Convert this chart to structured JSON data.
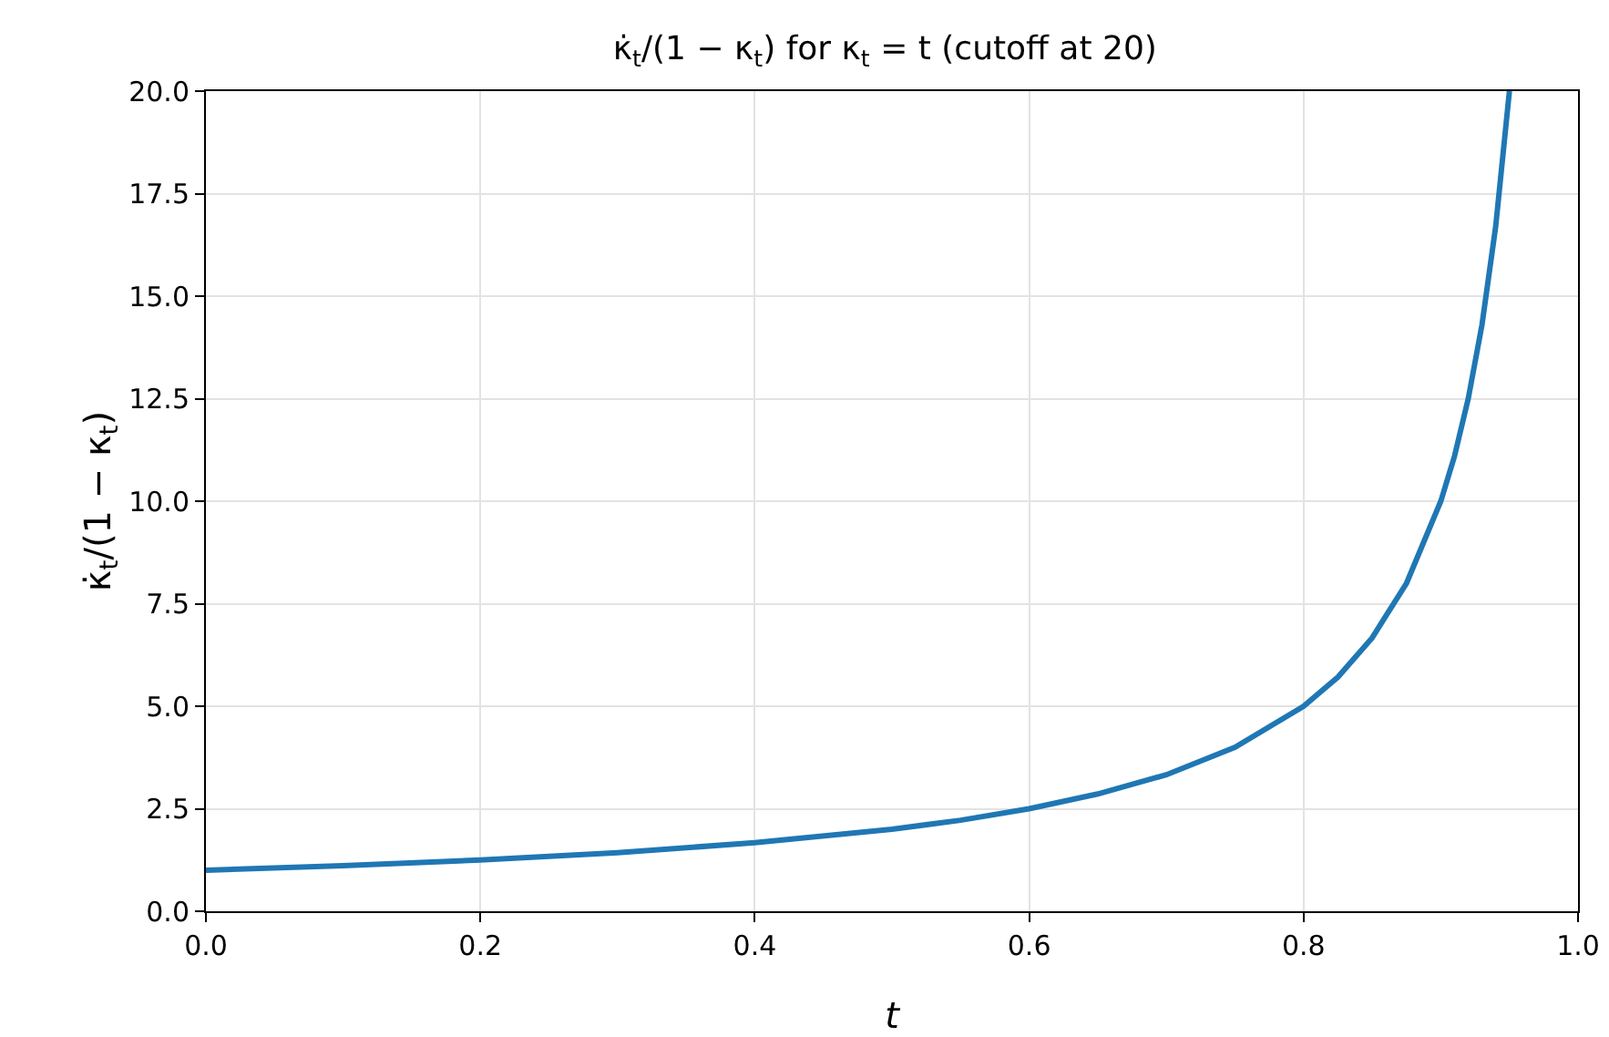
{
  "chart_data": {
    "type": "line",
    "title": "κ̇$_{t}$/(1 − κ$_{t}$) for κ$_{t}$ = t (cutoff at 20)",
    "xlabel": "t",
    "ylabel": "κ̇$_{t}$/(1 − κ$_{t}$)",
    "x": [
      0,
      0.1,
      0.2,
      0.3,
      0.4,
      0.5,
      0.55,
      0.6,
      0.65,
      0.7,
      0.75,
      0.8,
      0.825,
      0.85,
      0.875,
      0.9,
      0.91,
      0.92,
      0.93,
      0.94,
      0.95
    ],
    "series": [
      {
        "color": "#1f77b4",
        "values": [
          1,
          1.11,
          1.25,
          1.43,
          1.67,
          2,
          2.22,
          2.5,
          2.86,
          3.33,
          4,
          5,
          5.71,
          6.67,
          8,
          10,
          11.1,
          12.5,
          14.3,
          16.7,
          20
        ]
      }
    ],
    "xlim": [
      0,
      1
    ],
    "ylim": [
      0,
      20
    ],
    "xticks": [
      {
        "value": 0,
        "label": "0.0"
      },
      {
        "value": 0.2,
        "label": "0.2"
      },
      {
        "value": 0.4,
        "label": "0.4"
      },
      {
        "value": 0.6,
        "label": "0.6"
      },
      {
        "value": 0.8,
        "label": "0.8"
      },
      {
        "value": 1,
        "label": "1.0"
      }
    ],
    "yticks": [
      {
        "value": 0,
        "label": "0.0"
      },
      {
        "value": 2.5,
        "label": "2.5"
      },
      {
        "value": 5,
        "label": "5.0"
      },
      {
        "value": 7.5,
        "label": "7.5"
      },
      {
        "value": 10,
        "label": "10.0"
      },
      {
        "value": 12.5,
        "label": "12.5"
      },
      {
        "value": 15,
        "label": "15.0"
      },
      {
        "value": 17.5,
        "label": "17.5"
      },
      {
        "value": 20,
        "label": "20.0"
      }
    ],
    "grid": true
  }
}
